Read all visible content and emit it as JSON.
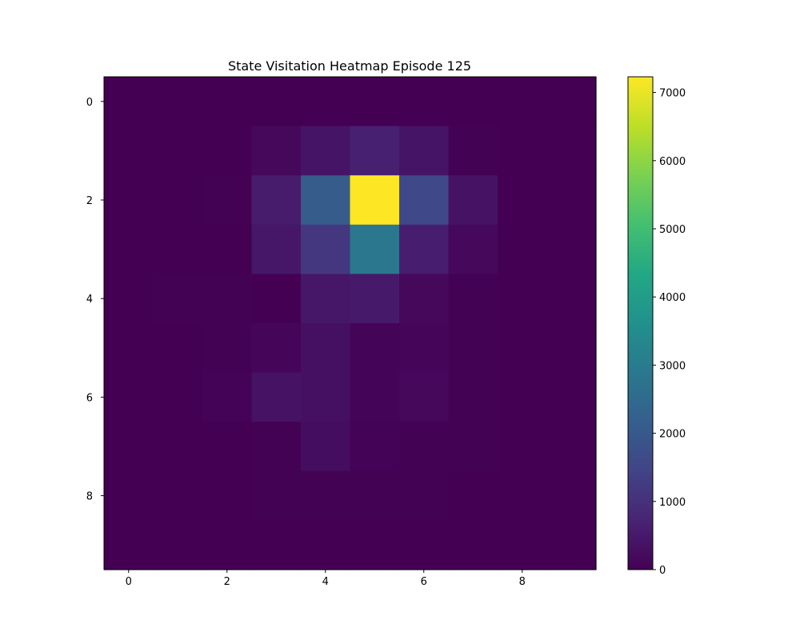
{
  "chart_data": {
    "type": "heatmap",
    "title": "State Visitation Heatmap Episode 125",
    "xlabel": "",
    "ylabel": "",
    "colormap": "viridis",
    "grid": false,
    "colorbar_placement": "right",
    "vmin": 0,
    "vmax": 7230,
    "x_ticks": [
      0,
      2,
      4,
      6,
      8
    ],
    "y_ticks": [
      0,
      2,
      4,
      6,
      8
    ],
    "colorbar_ticks": [
      0,
      1000,
      2000,
      3000,
      4000,
      5000,
      6000,
      7000
    ],
    "rows": 10,
    "cols": 10,
    "values": [
      [
        0,
        0,
        0,
        0,
        0,
        0,
        0,
        0,
        0,
        0
      ],
      [
        0,
        0,
        0,
        150,
        400,
        650,
        400,
        20,
        0,
        0
      ],
      [
        0,
        0,
        30,
        550,
        2100,
        7230,
        1550,
        350,
        0,
        0
      ],
      [
        0,
        0,
        10,
        450,
        1150,
        2850,
        600,
        150,
        0,
        0
      ],
      [
        0,
        30,
        20,
        10,
        450,
        500,
        150,
        30,
        0,
        0
      ],
      [
        0,
        10,
        20,
        100,
        300,
        60,
        100,
        20,
        0,
        0
      ],
      [
        0,
        0,
        50,
        350,
        300,
        60,
        150,
        30,
        0,
        0
      ],
      [
        0,
        0,
        10,
        30,
        250,
        40,
        30,
        30,
        0,
        0
      ],
      [
        0,
        0,
        0,
        30,
        20,
        20,
        20,
        10,
        0,
        0
      ],
      [
        0,
        0,
        0,
        0,
        0,
        0,
        0,
        0,
        0,
        0
      ]
    ]
  }
}
